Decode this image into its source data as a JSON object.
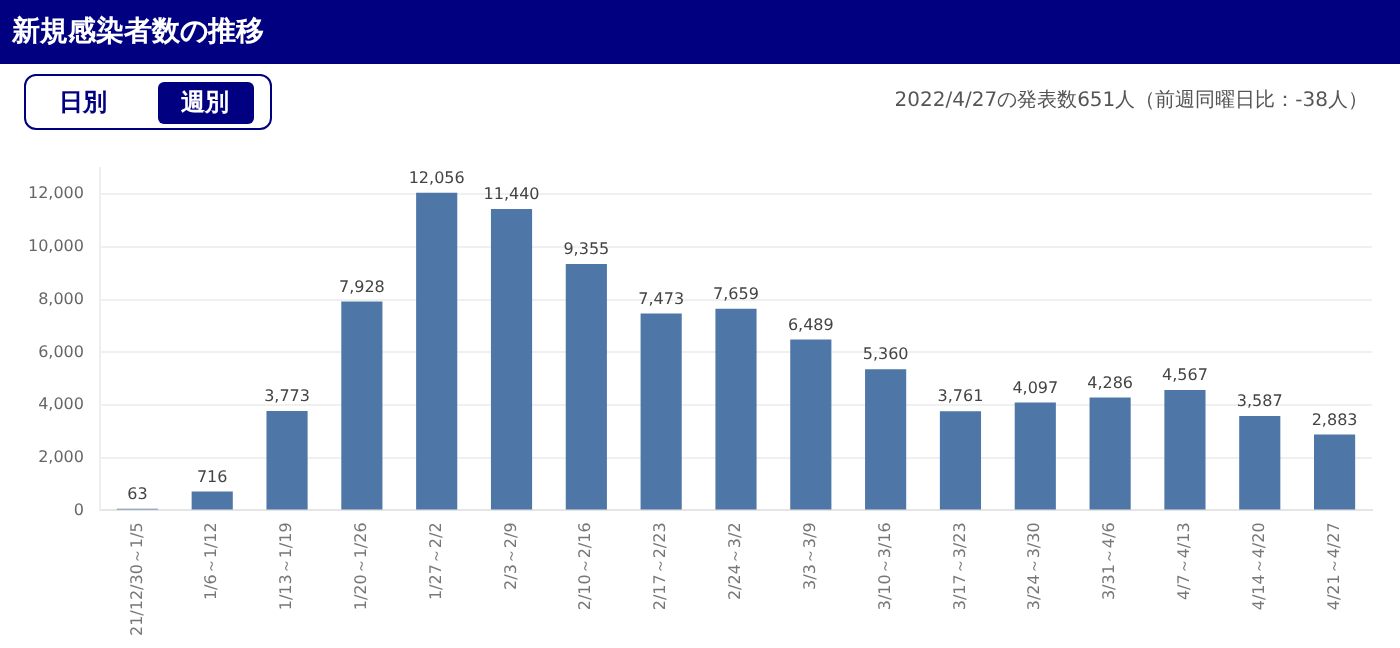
{
  "chart_data": {
    "type": "bar",
    "title": "新規感染者数の推移",
    "subtitle": "2022/4/27の発表数651人（前週同曜日比：-38人）",
    "annotations": [
      "日別",
      "週別"
    ],
    "categories": [
      "21/12/30～1/5",
      "1/6～1/12",
      "1/13～1/19",
      "1/20～1/26",
      "1/27～2/2",
      "2/3～2/9",
      "2/10～2/16",
      "2/17～2/23",
      "2/24～3/2",
      "3/3～3/9",
      "3/10～3/16",
      "3/17～3/23",
      "3/24～3/30",
      "3/31～4/6",
      "4/7～4/13",
      "4/14～4/20",
      "4/21～4/27"
    ],
    "values": [
      63,
      716,
      3773,
      7928,
      12056,
      11440,
      9355,
      7473,
      7659,
      6489,
      5360,
      3761,
      4097,
      4286,
      4567,
      3587,
      2883
    ],
    "value_labels": [
      "63",
      "716",
      "3,773",
      "7,928",
      "12,056",
      "11,440",
      "9,355",
      "7,473",
      "7,659",
      "6,489",
      "5,360",
      "3,761",
      "4,097",
      "4,286",
      "4,567",
      "3,587",
      "2,883"
    ],
    "color": "#4e76a6",
    "ylim": [
      0,
      13000
    ],
    "yticks": [
      0,
      {
        "value": 2000,
        "label": "2,000"
      },
      {
        "value": 4000,
        "label": "4,000"
      },
      {
        "value": 6000,
        "label": "6,000"
      },
      {
        "value": 8000,
        "label": "8,000"
      },
      {
        "value": 10000,
        "label": "10,000"
      },
      {
        "value": 12000,
        "label": "12,000"
      }
    ],
    "grid": "y",
    "legend": false
  }
}
